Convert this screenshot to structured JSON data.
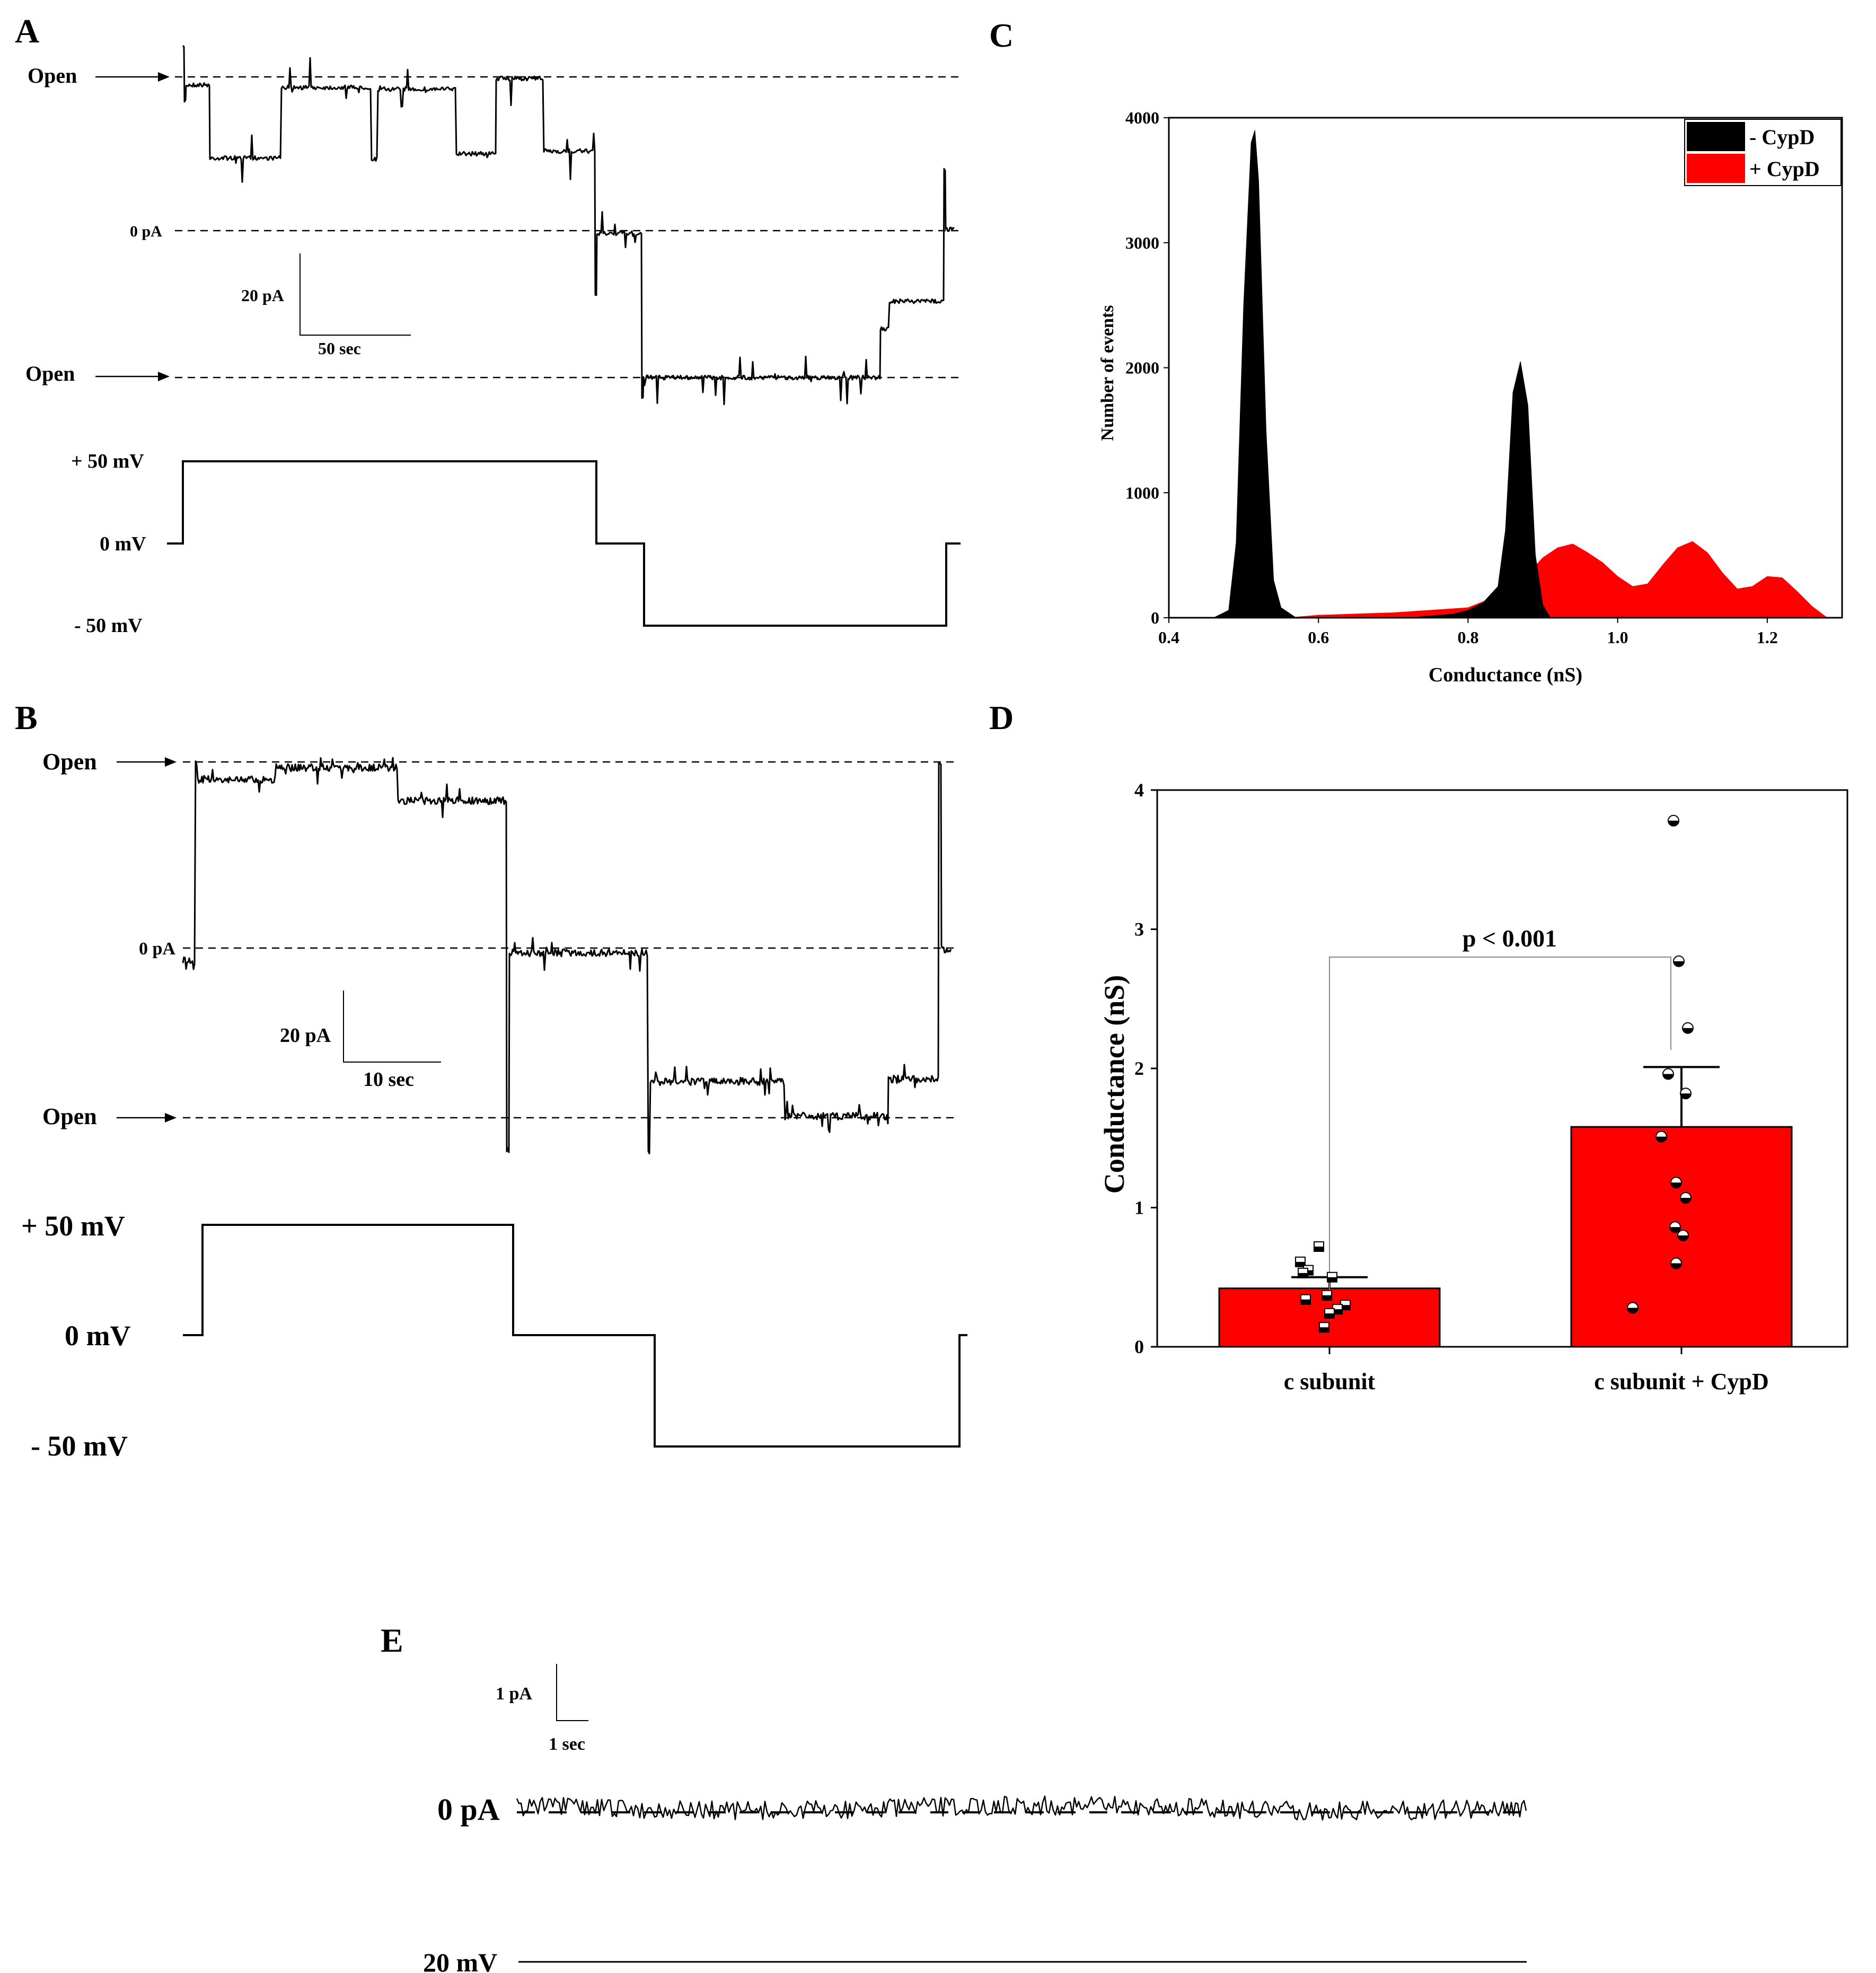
{
  "panels": {
    "A": {
      "letter": "A",
      "open_label_top": "Open",
      "open_label_bottom": "Open",
      "zero_label": "0 pA",
      "scale_current": "20 pA",
      "scale_time": "50 sec",
      "v_high": "+ 50 mV",
      "v_zero": "0 mV",
      "v_low": "- 50 mV"
    },
    "B": {
      "letter": "B",
      "open_label_top": "Open",
      "open_label_bottom": "Open",
      "zero_label": "0 pA",
      "scale_current": "20 pA",
      "scale_time": "10 sec",
      "v_high": "+ 50 mV",
      "v_zero": "0 mV",
      "v_low": "- 50 mV"
    },
    "C": {
      "letter": "C"
    },
    "D": {
      "letter": "D",
      "significance": "p < 0.001"
    },
    "E": {
      "letter": "E",
      "scale_current": "1 pA",
      "scale_time": "1 sec",
      "zero_label": "0 pA",
      "voltage_label": "20 mV"
    }
  },
  "chart_data": [
    {
      "panel": "C",
      "type": "area",
      "xlabel": "Conductance (nS)",
      "ylabel": "Number of events",
      "xlim": [
        0.4,
        1.3
      ],
      "ylim": [
        0,
        4000
      ],
      "xticks": [
        "0.4",
        "0.6",
        "0.8",
        "1.0",
        "1.2"
      ],
      "yticks": [
        "0",
        "1000",
        "2000",
        "3000",
        "4000"
      ],
      "legend_position": "top-right",
      "series": [
        {
          "name": "- CypD",
          "color": "#000000",
          "points": [
            [
              0.46,
              0
            ],
            [
              0.48,
              60
            ],
            [
              0.49,
              600
            ],
            [
              0.5,
              2500
            ],
            [
              0.51,
              3800
            ],
            [
              0.515,
              3900
            ],
            [
              0.52,
              3500
            ],
            [
              0.53,
              1500
            ],
            [
              0.54,
              300
            ],
            [
              0.55,
              80
            ],
            [
              0.57,
              0
            ],
            [
              0.72,
              0
            ],
            [
              0.78,
              30
            ],
            [
              0.8,
              60
            ],
            [
              0.82,
              120
            ],
            [
              0.84,
              250
            ],
            [
              0.85,
              700
            ],
            [
              0.86,
              1800
            ],
            [
              0.87,
              2050
            ],
            [
              0.88,
              1700
            ],
            [
              0.89,
              500
            ],
            [
              0.9,
              100
            ],
            [
              0.91,
              0
            ]
          ]
        },
        {
          "name": "+ CypD",
          "color": "#ff0000",
          "points": [
            [
              0.56,
              0
            ],
            [
              0.6,
              20
            ],
            [
              0.65,
              30
            ],
            [
              0.7,
              40
            ],
            [
              0.75,
              60
            ],
            [
              0.8,
              80
            ],
            [
              0.85,
              200
            ],
            [
              0.88,
              350
            ],
            [
              0.9,
              480
            ],
            [
              0.92,
              560
            ],
            [
              0.94,
              590
            ],
            [
              0.96,
              520
            ],
            [
              0.98,
              440
            ],
            [
              1.0,
              330
            ],
            [
              1.02,
              250
            ],
            [
              1.04,
              270
            ],
            [
              1.06,
              420
            ],
            [
              1.08,
              560
            ],
            [
              1.1,
              610
            ],
            [
              1.12,
              520
            ],
            [
              1.14,
              360
            ],
            [
              1.16,
              230
            ],
            [
              1.18,
              250
            ],
            [
              1.2,
              330
            ],
            [
              1.22,
              320
            ],
            [
              1.24,
              210
            ],
            [
              1.26,
              90
            ],
            [
              1.28,
              0
            ]
          ]
        }
      ]
    },
    {
      "panel": "D",
      "type": "bar",
      "ylabel": "Conductance (nS)",
      "ylim": [
        0,
        4
      ],
      "yticks": [
        "0",
        "1",
        "2",
        "3",
        "4"
      ],
      "categories": [
        "c subunit",
        "c subunit + CypD"
      ],
      "values": [
        0.42,
        1.58
      ],
      "errors": [
        0.08,
        0.43
      ],
      "bar_color": "#ff0000",
      "points": [
        [
          0.72,
          0.61,
          0.55,
          0.53,
          0.5,
          0.37,
          0.34,
          0.3,
          0.27,
          0.24,
          0.14
        ],
        [
          3.78,
          2.77,
          2.29,
          1.96,
          1.82,
          1.51,
          1.18,
          1.07,
          0.86,
          0.8,
          0.6,
          0.28
        ]
      ]
    }
  ]
}
